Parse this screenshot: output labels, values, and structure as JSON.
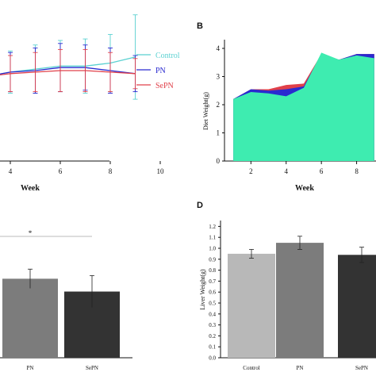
{
  "panels": {
    "b_letter": "B",
    "d_letter": "D"
  },
  "colors": {
    "control": "#5ad1d1",
    "pn": "#2a2ad0",
    "sepn": "#e0404a",
    "area_control": "#3eecb0",
    "bar_control": "#b8b8b8",
    "bar_pn": "#7c7c7c",
    "bar_sepn": "#333333",
    "sig_line": "#bbbbbb"
  },
  "chart_data": [
    {
      "id": "A",
      "type": "line",
      "xlabel": "Week",
      "x_ticks": [
        4,
        6,
        8,
        10
      ],
      "xlim": [
        2.6,
        10
      ],
      "ylim": [
        0,
        10
      ],
      "legend": [
        "Control",
        "PN",
        "SePN"
      ],
      "legend_position": "top-right",
      "series": [
        {
          "name": "Control",
          "color_key": "control",
          "x": [
            3,
            4,
            5,
            6,
            7,
            8,
            9
          ],
          "y": [
            5.6,
            5.9,
            6.1,
            6.3,
            6.3,
            6.5,
            6.9
          ],
          "err": [
            1.0,
            1.4,
            1.6,
            1.7,
            1.8,
            1.9,
            2.8
          ]
        },
        {
          "name": "PN",
          "color_key": "pn",
          "x": [
            3,
            4,
            5,
            6,
            7,
            8,
            9
          ],
          "y": [
            5.6,
            5.9,
            6.0,
            6.2,
            6.2,
            6.0,
            5.8
          ],
          "err": [
            0.9,
            1.3,
            1.5,
            1.6,
            1.5,
            1.5,
            1.2
          ]
        },
        {
          "name": "SePN",
          "color_key": "sepn",
          "x": [
            3,
            4,
            5,
            6,
            7,
            8,
            9
          ],
          "y": [
            5.6,
            5.8,
            5.9,
            6.0,
            6.0,
            5.9,
            5.8
          ],
          "err": [
            0.9,
            1.2,
            1.3,
            1.4,
            1.4,
            1.3,
            1.0
          ]
        }
      ]
    },
    {
      "id": "B",
      "type": "area",
      "xlabel": "Week",
      "ylabel": "Diet Weight(g)",
      "x_ticks": [
        2,
        4,
        6,
        8
      ],
      "y_ticks": [
        0,
        1,
        2,
        3,
        4
      ],
      "xlim": [
        0.5,
        9.1
      ],
      "ylim": [
        0,
        4
      ],
      "series": [
        {
          "name": "SePN",
          "color_key": "sepn",
          "x": [
            1,
            2,
            3,
            4,
            5,
            6,
            7,
            8,
            9
          ],
          "y": [
            2.2,
            2.55,
            2.55,
            2.7,
            2.75,
            3.8,
            3.6,
            3.8,
            3.8
          ]
        },
        {
          "name": "PN",
          "color_key": "pn",
          "x": [
            1,
            2,
            3,
            4,
            5,
            6,
            7,
            8,
            9
          ],
          "y": [
            2.2,
            2.55,
            2.5,
            2.55,
            2.65,
            3.8,
            3.6,
            3.8,
            3.8
          ]
        },
        {
          "name": "Control",
          "color_key": "area_control",
          "x": [
            1,
            2,
            3,
            4,
            5,
            6,
            7,
            8,
            9
          ],
          "y": [
            2.2,
            2.45,
            2.4,
            2.3,
            2.6,
            3.85,
            3.6,
            3.75,
            3.65
          ]
        }
      ]
    },
    {
      "id": "C",
      "type": "bar",
      "categories": [
        "PN",
        "SePN"
      ],
      "values": [
        0.74,
        0.62
      ],
      "errors": [
        0.09,
        0.15
      ],
      "ylim": [
        0,
        1.3
      ],
      "annotation": "*"
    },
    {
      "id": "D",
      "type": "bar",
      "ylabel": "Liver Weight(g)",
      "categories": [
        "Control",
        "PN",
        "SePN"
      ],
      "values": [
        0.95,
        1.05,
        0.94
      ],
      "errors": [
        0.04,
        0.06,
        0.07
      ],
      "y_ticks": [
        "0.0",
        "0.1",
        "0.2",
        "0.3",
        "0.4",
        "0.5",
        "0.6",
        "0.7",
        "0.8",
        "0.9",
        "1.0",
        "1.1",
        "1.2"
      ],
      "ylim": [
        0,
        1.25
      ]
    }
  ]
}
